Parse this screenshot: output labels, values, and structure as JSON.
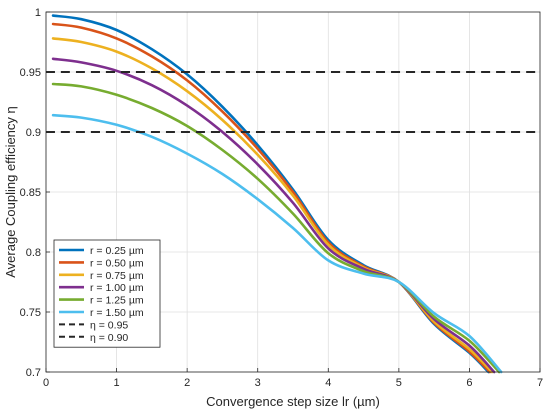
{
  "chart_data": {
    "type": "line",
    "xlabel": "Convergence step size lr (µm)",
    "ylabel": "Average Coupling efficiency η",
    "xlim": [
      0,
      7
    ],
    "ylim": [
      0.7,
      1.0
    ],
    "xticks": [
      "0",
      "1",
      "2",
      "3",
      "4",
      "5",
      "6",
      "7"
    ],
    "yticks": [
      "0.7",
      "0.75",
      "0.8",
      "0.85",
      "0.9",
      "0.95",
      "1"
    ],
    "grid": true,
    "legend_position": "bottom-left",
    "series": [
      {
        "name": "r = 0.25 µm",
        "color": "#0072BD",
        "dash": "solid",
        "x": [
          0.1,
          0.5,
          1,
          1.5,
          2,
          2.5,
          3,
          3.5,
          4,
          4.5,
          5,
          5.5,
          6,
          6.27
        ],
        "y": [
          0.997,
          0.994,
          0.985,
          0.969,
          0.948,
          0.921,
          0.889,
          0.852,
          0.81,
          0.789,
          0.775,
          0.74,
          0.716,
          0.7
        ]
      },
      {
        "name": "r = 0.50 µm",
        "color": "#D95319",
        "dash": "solid",
        "x": [
          0.1,
          0.5,
          1,
          1.5,
          2,
          2.5,
          3,
          3.5,
          4,
          4.5,
          5,
          5.5,
          6,
          6.29
        ],
        "y": [
          0.99,
          0.987,
          0.978,
          0.963,
          0.943,
          0.917,
          0.886,
          0.85,
          0.808,
          0.788,
          0.775,
          0.741,
          0.717,
          0.7
        ]
      },
      {
        "name": "r = 0.75 µm",
        "color": "#EDB120",
        "dash": "solid",
        "x": [
          0.1,
          0.5,
          1,
          1.5,
          2,
          2.5,
          3,
          3.5,
          4,
          4.5,
          5,
          5.5,
          6,
          6.32
        ],
        "y": [
          0.978,
          0.975,
          0.967,
          0.953,
          0.934,
          0.91,
          0.881,
          0.847,
          0.806,
          0.787,
          0.775,
          0.742,
          0.719,
          0.7
        ]
      },
      {
        "name": "r = 1.00 µm",
        "color": "#7E2F8E",
        "dash": "solid",
        "x": [
          0.1,
          0.5,
          1,
          1.5,
          2,
          2.5,
          3,
          3.5,
          4,
          4.5,
          5,
          5.5,
          6,
          6.35
        ],
        "y": [
          0.961,
          0.958,
          0.951,
          0.939,
          0.922,
          0.9,
          0.873,
          0.841,
          0.803,
          0.786,
          0.775,
          0.744,
          0.722,
          0.7
        ]
      },
      {
        "name": "r = 1.25 µm",
        "color": "#77AC30",
        "dash": "solid",
        "x": [
          0.1,
          0.5,
          1,
          1.5,
          2,
          2.5,
          3,
          3.5,
          4,
          4.5,
          5,
          5.5,
          6,
          6.42
        ],
        "y": [
          0.94,
          0.938,
          0.931,
          0.92,
          0.905,
          0.885,
          0.861,
          0.832,
          0.799,
          0.784,
          0.775,
          0.746,
          0.726,
          0.7
        ]
      },
      {
        "name": "r = 1.50 µm",
        "color": "#4DBEEE",
        "dash": "solid",
        "x": [
          0.1,
          0.5,
          1,
          1.5,
          2,
          2.5,
          3,
          3.5,
          4,
          4.5,
          5,
          5.5,
          6,
          6.45
        ],
        "y": [
          0.914,
          0.912,
          0.906,
          0.896,
          0.882,
          0.865,
          0.844,
          0.82,
          0.793,
          0.782,
          0.775,
          0.749,
          0.73,
          0.7
        ]
      },
      {
        "name": "η = 0.95",
        "color": "#262626",
        "dash": "dashed",
        "x": [
          0,
          7
        ],
        "y": [
          0.95,
          0.95
        ]
      },
      {
        "name": "η = 0.90",
        "color": "#262626",
        "dash": "dashed",
        "x": [
          0,
          7
        ],
        "y": [
          0.9,
          0.9
        ]
      }
    ]
  }
}
